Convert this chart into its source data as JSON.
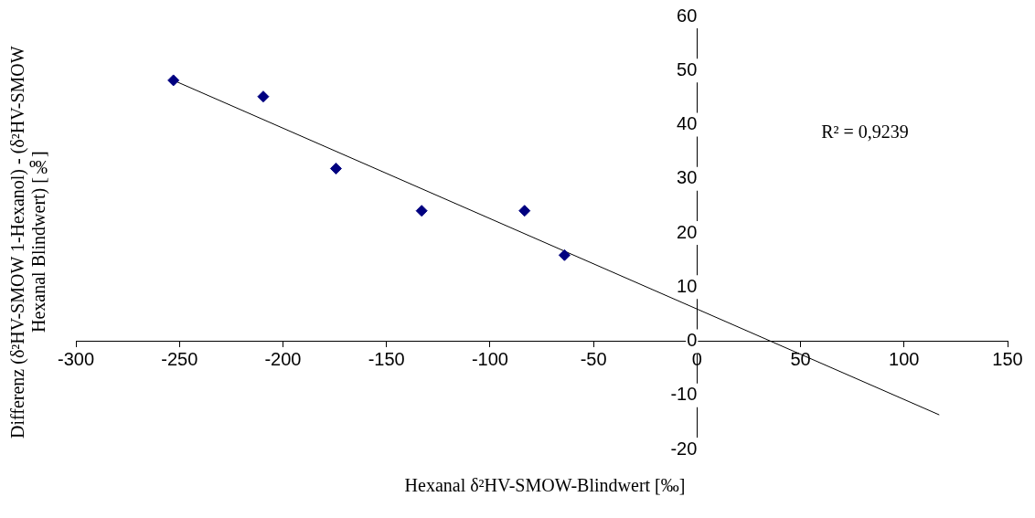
{
  "chart_data": {
    "type": "scatter",
    "xlabel": "Hexanal δ²HV-SMOW-Blindwert [‰]",
    "ylabel": "Differenz (δ²HV-SMOW 1-Hexanol) - (δ²HV-SMOW Hexanal Blindwert) [‰]",
    "annotations": [
      "R² = 0,9239"
    ],
    "series": [
      {
        "type": "scatter",
        "color": "#000080",
        "x": [
          -252.9,
          -209.5,
          -174.4,
          -133,
          -83.3,
          -64
        ],
        "values": [
          48.2,
          45.2,
          31.9,
          24.1,
          24.1,
          15.9
        ]
      },
      {
        "type": "line",
        "color": "#000000",
        "marker": "none",
        "x": [
          -252.9,
          117
        ],
        "values": [
          48.2,
          -13.6
        ]
      }
    ],
    "xlim": [
      -300,
      150
    ],
    "xticks": [
      -300,
      -250,
      -200,
      -150,
      -100,
      -50,
      0,
      50,
      100,
      150
    ],
    "ylim": [
      -20,
      60
    ],
    "yticks": [
      -20,
      -10,
      0,
      10,
      20,
      30,
      40,
      50,
      60
    ],
    "marker": "diamond",
    "grid": false,
    "legend": false
  }
}
